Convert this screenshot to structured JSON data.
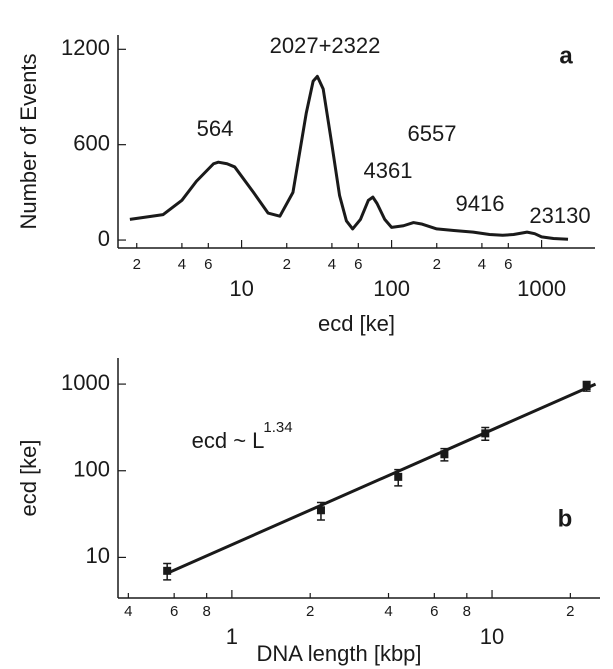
{
  "chart_data": [
    {
      "type": "line",
      "xlabel": "ecd [ke]",
      "ylabel": "Number of Events",
      "xscale": "log",
      "x": [
        1.8,
        3,
        4,
        5,
        6.5,
        7,
        8,
        9,
        12,
        15,
        18,
        22,
        27,
        30,
        32,
        35,
        40,
        45,
        50,
        55,
        62,
        70,
        75,
        80,
        90,
        100,
        120,
        140,
        160,
        200,
        260,
        350,
        450,
        550,
        650,
        750,
        800,
        900,
        1000,
        1200,
        1500
      ],
      "series": [
        {
          "color": "#1a1a1a",
          "values": [
            130,
            160,
            250,
            370,
            480,
            490,
            480,
            460,
            300,
            170,
            150,
            300,
            800,
            1000,
            1030,
            950,
            600,
            280,
            120,
            70,
            130,
            250,
            270,
            230,
            130,
            80,
            90,
            110,
            100,
            70,
            60,
            50,
            35,
            30,
            35,
            45,
            50,
            40,
            20,
            10,
            5
          ]
        }
      ],
      "xlim": [
        1.5,
        2270
      ],
      "xticks": [
        2,
        4,
        6,
        10,
        {
          "value": 20,
          "label": "2"
        },
        {
          "value": 40,
          "label": "4"
        },
        {
          "value": 60,
          "label": "6"
        },
        100,
        {
          "value": 200,
          "label": "2"
        },
        {
          "value": 400,
          "label": "4"
        },
        {
          "value": 600,
          "label": "6"
        },
        1000
      ],
      "ylim": [
        -50,
        1290
      ],
      "yticks": [
        0,
        600,
        1200
      ],
      "annotations": [
        "564",
        "2027+2322",
        "4361",
        "6557",
        "9416",
        "23130",
        "a"
      ]
    },
    {
      "type": "scatter",
      "xlabel": "DNA length [kbp]",
      "ylabel": "ecd [ke]",
      "xscale": "log",
      "yscale": "log",
      "x": [
        0.564,
        2.2,
        4.36,
        6.56,
        9.42,
        23.1
      ],
      "series": [
        {
          "color": "#1a1a1a",
          "values": [
            7,
            35,
            85,
            155,
            270,
            950
          ],
          "errors": [
            1.5,
            8,
            18,
            25,
            45,
            120
          ]
        }
      ],
      "fit": {
        "x": [
          0.56,
          25
        ],
        "values": [
          6.5,
          1000
        ]
      },
      "xlim": [
        0.365,
        26
      ],
      "xticks": [
        {
          "value": 0.4,
          "label": "4"
        },
        {
          "value": 0.6,
          "label": "6"
        },
        {
          "value": 0.8,
          "label": "8"
        },
        1,
        2,
        4,
        6,
        8,
        10,
        {
          "value": 20,
          "label": "2"
        }
      ],
      "ylim": [
        3.4,
        2000
      ],
      "yticks": [
        10,
        100,
        1000
      ],
      "annotations": [
        "ecd ~ L",
        "1.34",
        "b"
      ]
    }
  ]
}
